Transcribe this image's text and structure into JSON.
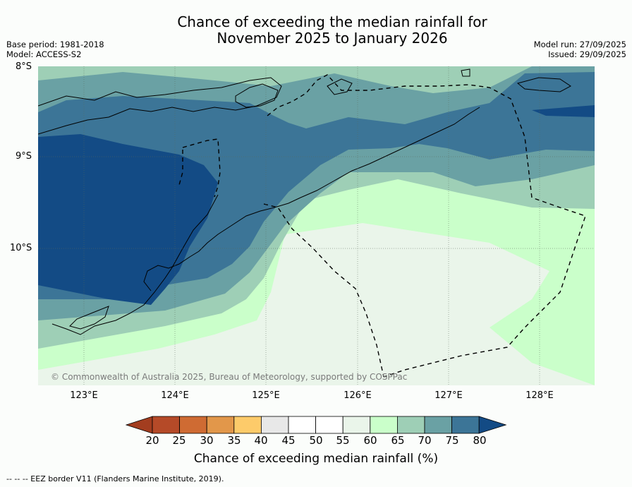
{
  "title_line1": "Chance of exceeding the median rainfall for",
  "title_line2": "November 2025 to January 2026",
  "meta_left": [
    "Base period: 1981-2018",
    "Model: ACCESS-S2"
  ],
  "meta_right": [
    "Model run: 27/09/2025",
    "Issued: 29/09/2025"
  ],
  "lat_labels": [
    "8°S",
    "9°S",
    "10°S"
  ],
  "lon_labels": [
    "123°E",
    "124°E",
    "125°E",
    "126°E",
    "127°E",
    "128°E"
  ],
  "copyright": "© Commonwealth of Australia 2025, Bureau of Meteorology, supported by COSPPac",
  "colorbar": {
    "label": "Chance of exceeding median rainfall (%)",
    "ticks": [
      "20",
      "25",
      "30",
      "35",
      "40",
      "45",
      "50",
      "55",
      "60",
      "65",
      "70",
      "75",
      "80"
    ],
    "colors": [
      "#a33d1f",
      "#b54a28",
      "#cf6b33",
      "#e2974a",
      "#fdcb6a",
      "#e8e8e8",
      "#ffffff",
      "#ffffff",
      "#eaf5ea",
      "#caffca",
      "#9ecfb6",
      "#6aa1a4",
      "#3c7597",
      "#134b85"
    ]
  },
  "eez_note": "--  --  -- EEZ border V11 (Flanders Marine Institute, 2019)."
}
